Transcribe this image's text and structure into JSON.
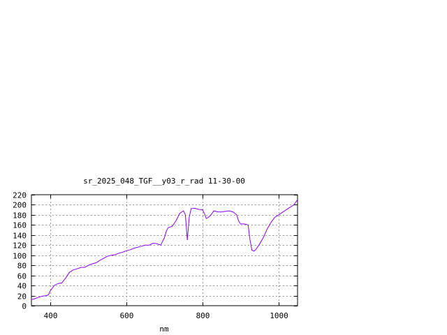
{
  "chart_data": {
    "type": "line",
    "title": "sr_2025_048_TGF__y03_r_rad 11-30-00",
    "xlabel": "nm",
    "ylabel": "",
    "xlim": [
      350,
      1050
    ],
    "ylim": [
      0,
      220
    ],
    "x_ticks": [
      400,
      600,
      800,
      1000
    ],
    "y_ticks": [
      0,
      20,
      40,
      60,
      80,
      100,
      120,
      140,
      160,
      180,
      200,
      220
    ],
    "grid": true,
    "line_color": "#8b00ff",
    "series": [
      {
        "x": [
          350,
          360,
          370,
          380,
          390,
          395,
          400,
          410,
          420,
          430,
          440,
          450,
          460,
          470,
          480,
          490,
          500,
          510,
          520,
          530,
          540,
          550,
          560,
          570,
          580,
          590,
          600,
          610,
          620,
          630,
          640,
          650,
          660,
          670,
          680,
          690,
          700,
          705,
          710,
          715,
          720,
          730,
          740,
          750,
          755,
          760,
          765,
          770,
          775,
          780,
          790,
          800,
          805,
          810,
          815,
          820,
          830,
          840,
          850,
          860,
          870,
          880,
          890,
          895,
          900,
          910,
          920,
          925,
          930,
          935,
          940,
          950,
          960,
          970,
          980,
          990,
          1000,
          1010,
          1020,
          1030,
          1040,
          1050
        ],
        "y": [
          12,
          14,
          17,
          19,
          20,
          22,
          30,
          40,
          44,
          45,
          55,
          66,
          71,
          73,
          76,
          76,
          80,
          83,
          85,
          90,
          94,
          98,
          100,
          101,
          104,
          106,
          109,
          111,
          114,
          116,
          118,
          120,
          120,
          124,
          123,
          120,
          135,
          148,
          155,
          156,
          157,
          168,
          183,
          188,
          180,
          130,
          175,
          192,
          193,
          193,
          191,
          190,
          183,
          173,
          175,
          178,
          188,
          186,
          186,
          187,
          188,
          186,
          180,
          168,
          162,
          162,
          160,
          130,
          110,
          108,
          111,
          122,
          135,
          152,
          165,
          175,
          180,
          185,
          190,
          195,
          200,
          210
        ]
      }
    ]
  }
}
